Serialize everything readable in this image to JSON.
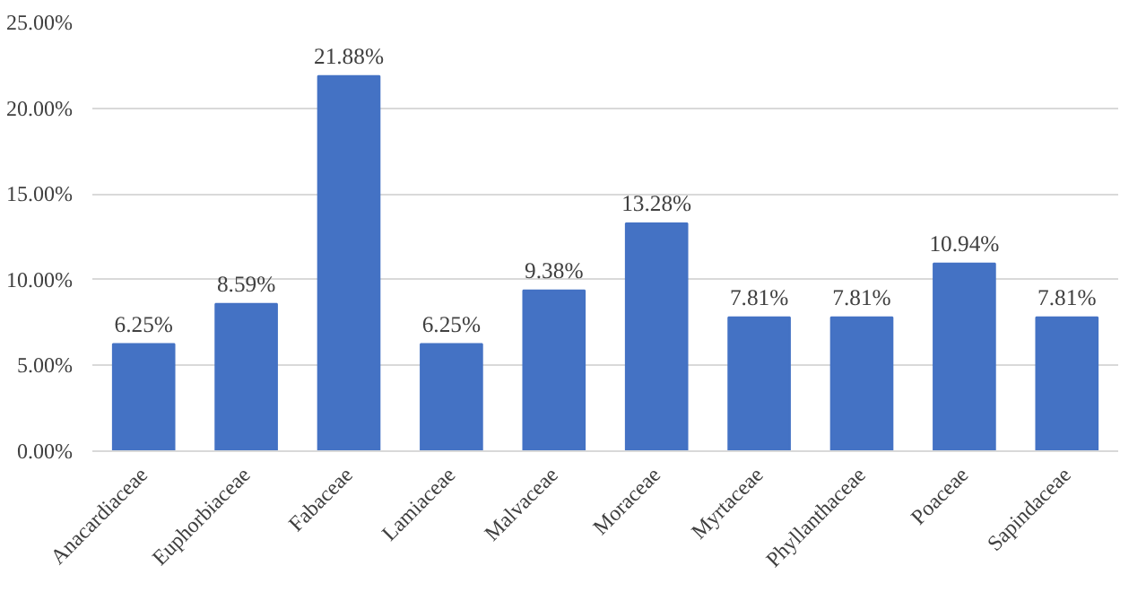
{
  "chart_data": {
    "type": "bar",
    "categories": [
      "Anacardiaceae",
      "Euphorbiaceae",
      "Fabaceae",
      "Lamiaceae",
      "Malvaceae",
      "Moraceae",
      "Myrtaceae",
      "Phyllanthaceae",
      "Poaceae",
      "Sapindaceae"
    ],
    "values": [
      6.25,
      8.59,
      21.88,
      6.25,
      9.38,
      13.28,
      7.81,
      7.81,
      10.94,
      7.81
    ],
    "value_labels": [
      "6.25%",
      "8.59%",
      "21.88%",
      "6.25%",
      "9.38%",
      "13.28%",
      "7.81%",
      "7.81%",
      "10.94%",
      "7.81%"
    ],
    "color": "#4472c4",
    "ylim": [
      0,
      25
    ],
    "yticks": [
      {
        "value": 0,
        "label": "0.00%"
      },
      {
        "value": 5,
        "label": "5.00%"
      },
      {
        "value": 10,
        "label": "10.00%"
      },
      {
        "value": 15,
        "label": "15.00%"
      },
      {
        "value": 20,
        "label": "20.00%"
      },
      {
        "value": 25,
        "label": "25.00%"
      }
    ],
    "grid": "y"
  }
}
